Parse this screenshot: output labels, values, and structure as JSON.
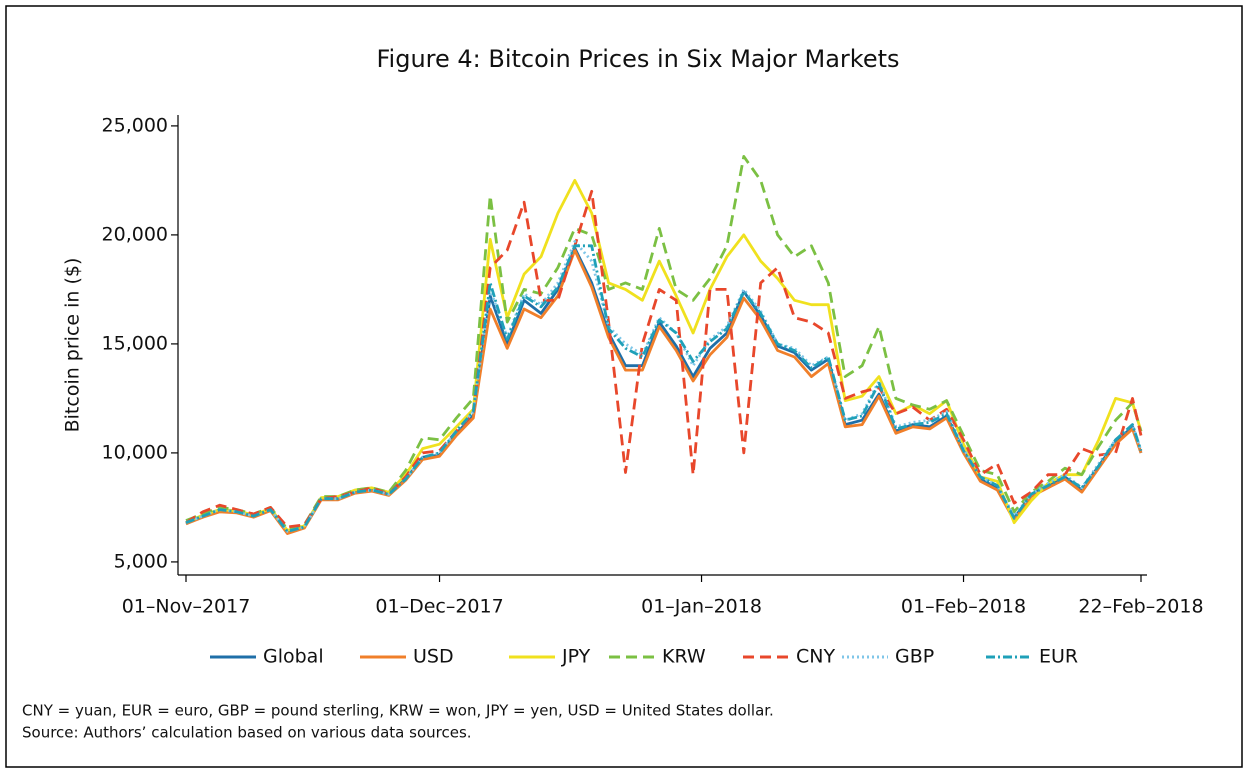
{
  "chart_data": {
    "type": "line",
    "title": "Figure 4: Bitcoin Prices in Six Major Markets",
    "y_label": "Bitcoin price in ($)",
    "notes": [
      "CNY = yuan, EUR = euro, GBP = pound sterling, KRW = won, JPY = yen, USD = United States dollar.",
      "Source: Authors’ calculation based on various data sources."
    ],
    "x": [
      "2017-11-01",
      "2017-11-03",
      "2017-11-05",
      "2017-11-07",
      "2017-11-09",
      "2017-11-11",
      "2017-11-13",
      "2017-11-15",
      "2017-11-17",
      "2017-11-19",
      "2017-11-21",
      "2017-11-23",
      "2017-11-25",
      "2017-11-27",
      "2017-11-29",
      "2017-12-01",
      "2017-12-03",
      "2017-12-05",
      "2017-12-07",
      "2017-12-09",
      "2017-12-11",
      "2017-12-13",
      "2017-12-15",
      "2017-12-17",
      "2017-12-19",
      "2017-12-21",
      "2017-12-23",
      "2017-12-25",
      "2017-12-27",
      "2017-12-29",
      "2017-12-31",
      "2018-01-02",
      "2018-01-04",
      "2018-01-06",
      "2018-01-08",
      "2018-01-10",
      "2018-01-12",
      "2018-01-14",
      "2018-01-16",
      "2018-01-18",
      "2018-01-20",
      "2018-01-22",
      "2018-01-24",
      "2018-01-26",
      "2018-01-28",
      "2018-01-30",
      "2018-02-01",
      "2018-02-03",
      "2018-02-05",
      "2018-02-07",
      "2018-02-09",
      "2018-02-11",
      "2018-02-13",
      "2018-02-15",
      "2018-02-17",
      "2018-02-19",
      "2018-02-21",
      "2018-02-22"
    ],
    "xlim": [
      "2017-11-01",
      "2018-02-22"
    ],
    "xticks": [
      {
        "value": "2017-11-01",
        "label": "01–Nov–2017"
      },
      {
        "value": "2017-12-01",
        "label": "01–Dec–2017"
      },
      {
        "value": "2018-01-01",
        "label": "01–Jan–2018"
      },
      {
        "value": "2018-02-01",
        "label": "01–Feb–2018"
      },
      {
        "value": "2018-02-22",
        "label": "22–Feb–2018"
      }
    ],
    "ylim": [
      4400,
      25500
    ],
    "yticks": [
      {
        "value": 5000,
        "label": "5,000"
      },
      {
        "value": 10000,
        "label": "10,000"
      },
      {
        "value": 15000,
        "label": "15,000"
      },
      {
        "value": 20000,
        "label": "20,000"
      },
      {
        "value": 25000,
        "label": "25,000"
      }
    ],
    "grid": false,
    "legend": "bottom",
    "series": [
      {
        "name": "Global",
        "color": "#1f6fa8",
        "style": "solid",
        "values": [
          6750,
          7100,
          7350,
          7300,
          7100,
          7400,
          6400,
          6600,
          7900,
          7900,
          8200,
          8300,
          8100,
          8800,
          9800,
          9900,
          10900,
          11700,
          17200,
          15000,
          17000,
          16400,
          17500,
          19400,
          17800,
          15500,
          14000,
          14000,
          16000,
          14900,
          13500,
          14800,
          15500,
          17400,
          16300,
          14900,
          14600,
          13800,
          14300,
          11300,
          11500,
          12700,
          11000,
          11300,
          11200,
          11700,
          10100,
          8800,
          8400,
          7000,
          8100,
          8500,
          8900,
          8300,
          9400,
          10500,
          11200,
          10000
        ]
      },
      {
        "name": "USD",
        "color": "#f07f2a",
        "style": "solid",
        "values": [
          6750,
          7050,
          7300,
          7250,
          7050,
          7350,
          6300,
          6550,
          7850,
          7850,
          8150,
          8250,
          8050,
          8750,
          9700,
          9850,
          10800,
          11600,
          16600,
          14800,
          16600,
          16200,
          17200,
          19300,
          17600,
          15300,
          13800,
          13800,
          15800,
          14700,
          13300,
          14500,
          15300,
          17100,
          16100,
          14700,
          14400,
          13500,
          14100,
          11200,
          11300,
          12600,
          10900,
          11200,
          11100,
          11600,
          10000,
          8700,
          8300,
          6900,
          8000,
          8400,
          8800,
          8200,
          9300,
          10400,
          11100,
          10000
        ]
      },
      {
        "name": "JPY",
        "color": "#f0e11e",
        "style": "solid",
        "values": [
          6800,
          7150,
          7400,
          7350,
          7150,
          7450,
          6450,
          6650,
          7950,
          8000,
          8300,
          8400,
          8200,
          9000,
          10200,
          10400,
          11200,
          12000,
          19800,
          16200,
          18200,
          19000,
          21000,
          22500,
          21000,
          17800,
          17500,
          17000,
          18800,
          17200,
          15500,
          17500,
          19000,
          20000,
          18800,
          18000,
          17000,
          16800,
          16800,
          12400,
          12600,
          13500,
          11800,
          12200,
          11800,
          12400,
          10400,
          8900,
          8700,
          6800,
          7800,
          8600,
          9000,
          9000,
          10600,
          12500,
          12300,
          11000
        ]
      },
      {
        "name": "KRW",
        "color": "#7bc043",
        "style": "dashed",
        "values": [
          6900,
          7200,
          7500,
          7400,
          7200,
          7500,
          6500,
          6700,
          8000,
          8000,
          8300,
          8400,
          8200,
          9200,
          10700,
          10600,
          11600,
          12500,
          21800,
          16000,
          17500,
          17300,
          18500,
          20300,
          20000,
          17500,
          17800,
          17500,
          20300,
          17500,
          17000,
          18000,
          19500,
          23600,
          22500,
          20000,
          19000,
          19500,
          17800,
          13500,
          14000,
          15800,
          12500,
          12200,
          12000,
          12400,
          10800,
          9200,
          9000,
          7300,
          8200,
          8700,
          9300,
          9000,
          10300,
          11500,
          12300,
          11000
        ]
      },
      {
        "name": "CNY",
        "color": "#e8472b",
        "style": "dashed",
        "values": [
          6800,
          7300,
          7600,
          7400,
          7200,
          7500,
          6600,
          6700,
          7900,
          8000,
          8200,
          8400,
          8100,
          8900,
          10000,
          10100,
          11000,
          11800,
          18500,
          19300,
          21500,
          17000,
          17000,
          19500,
          22000,
          16000,
          9100,
          15000,
          17500,
          17000,
          9000,
          17500,
          17500,
          10000,
          17800,
          18500,
          16200,
          16000,
          15500,
          12500,
          12800,
          13000,
          11800,
          12100,
          11500,
          12000,
          10600,
          9000,
          9500,
          7700,
          8200,
          9000,
          9000,
          10200,
          9900,
          10000,
          12500,
          10800
        ]
      },
      {
        "name": "GBP",
        "color": "#7fc6e8",
        "style": "dotted",
        "values": [
          6800,
          7100,
          7400,
          7300,
          7100,
          7400,
          6400,
          6600,
          7900,
          7900,
          8200,
          8300,
          8100,
          8800,
          9800,
          10000,
          11000,
          11900,
          17500,
          15300,
          17300,
          16800,
          17800,
          19700,
          18800,
          15800,
          15000,
          14500,
          16200,
          15500,
          14000,
          15200,
          15800,
          17500,
          16500,
          15000,
          14800,
          14000,
          14400,
          11500,
          11800,
          13300,
          11200,
          11400,
          11500,
          11900,
          10200,
          8900,
          8500,
          7100,
          8100,
          8600,
          9000,
          8400,
          9500,
          10600,
          11300,
          10100
        ]
      },
      {
        "name": "EUR",
        "color": "#1fa0b8",
        "style": "dashdot",
        "values": [
          6800,
          7100,
          7400,
          7300,
          7100,
          7400,
          6400,
          6600,
          7900,
          7900,
          8200,
          8300,
          8100,
          8800,
          9800,
          10000,
          11000,
          11900,
          17800,
          15200,
          17200,
          16700,
          17600,
          19500,
          19500,
          15700,
          14800,
          14400,
          16100,
          15500,
          14200,
          15100,
          15700,
          17400,
          16400,
          15000,
          14700,
          13900,
          14400,
          11500,
          11700,
          13200,
          11100,
          11300,
          11400,
          11800,
          10100,
          8900,
          8500,
          7000,
          8100,
          8500,
          8900,
          8400,
          9400,
          10600,
          11300,
          10100
        ]
      }
    ]
  }
}
